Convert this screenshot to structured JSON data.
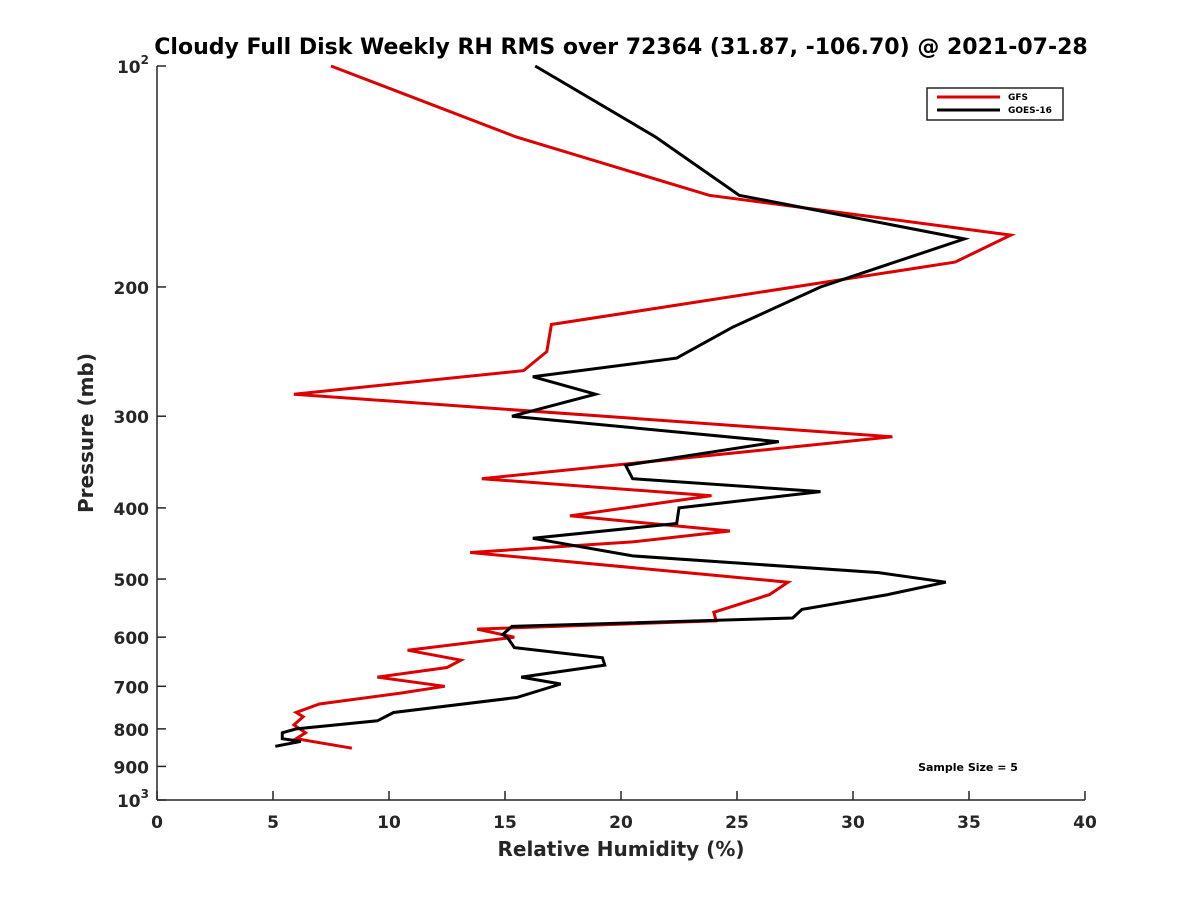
{
  "chart_data": {
    "type": "line",
    "title": "Cloudy Full Disk Weekly RH RMS over 72364 (31.87, -106.70) @ 2021-07-28",
    "xlabel": "Relative Humidity (%)",
    "ylabel": "Pressure (mb)",
    "xlim": [
      0,
      40
    ],
    "ylim": [
      100,
      1000
    ],
    "yscale": "log",
    "y_reversed": true,
    "grid": false,
    "x_ticks": [
      "0",
      "5",
      "10",
      "15",
      "20",
      "25",
      "30",
      "35",
      "40"
    ],
    "x_tick_values": [
      0,
      5,
      10,
      15,
      20,
      25,
      30,
      35,
      40
    ],
    "y_ticks": [
      {
        "value": 100,
        "base": "10",
        "exp": "2"
      },
      {
        "value": 200,
        "base": "200",
        "exp": ""
      },
      {
        "value": 300,
        "base": "300",
        "exp": ""
      },
      {
        "value": 400,
        "base": "400",
        "exp": ""
      },
      {
        "value": 500,
        "base": "500",
        "exp": ""
      },
      {
        "value": 600,
        "base": "600",
        "exp": ""
      },
      {
        "value": 700,
        "base": "700",
        "exp": ""
      },
      {
        "value": 800,
        "base": "800",
        "exp": ""
      },
      {
        "value": 900,
        "base": "900",
        "exp": ""
      },
      {
        "value": 1000,
        "base": "10",
        "exp": "3"
      }
    ],
    "legend_position": "top-right",
    "annotation": "Sample Size = 5",
    "series": [
      {
        "name": "GFS",
        "color": "#dd0000",
        "points": [
          [
            7.5,
            100
          ],
          [
            15.5,
            125
          ],
          [
            23.8,
            150
          ],
          [
            36.8,
            170
          ],
          [
            34.4,
            185
          ],
          [
            17,
            225
          ],
          [
            16.8,
            245
          ],
          [
            15.8,
            260
          ],
          [
            5.9,
            280
          ],
          [
            31.7,
            320
          ],
          [
            14,
            365
          ],
          [
            23.9,
            385
          ],
          [
            17.8,
            410
          ],
          [
            24.7,
            430
          ],
          [
            20.5,
            445
          ],
          [
            13.5,
            460
          ],
          [
            22.8,
            490
          ],
          [
            27.2,
            505
          ],
          [
            26.4,
            525
          ],
          [
            24,
            555
          ],
          [
            24.1,
            570
          ],
          [
            13.8,
            585
          ],
          [
            15.4,
            600
          ],
          [
            10.8,
            625
          ],
          [
            13.1,
            645
          ],
          [
            12.5,
            660
          ],
          [
            9.5,
            680
          ],
          [
            12.4,
            700
          ],
          [
            10.5,
            715
          ],
          [
            7,
            740
          ],
          [
            6,
            760
          ],
          [
            6.3,
            770
          ],
          [
            5.9,
            790
          ],
          [
            6.4,
            810
          ],
          [
            6,
            825
          ],
          [
            8.4,
            850
          ]
        ]
      },
      {
        "name": "GOES-16",
        "color": "#000000",
        "points": [
          [
            16.3,
            100
          ],
          [
            21.5,
            125
          ],
          [
            25.1,
            150
          ],
          [
            34.8,
            172
          ],
          [
            28.6,
            200
          ],
          [
            24.8,
            227
          ],
          [
            22.4,
            250
          ],
          [
            16.2,
            265
          ],
          [
            18.9,
            280
          ],
          [
            15.3,
            300
          ],
          [
            26.8,
            325
          ],
          [
            20.2,
            350
          ],
          [
            20.5,
            365
          ],
          [
            28.6,
            380
          ],
          [
            22.5,
            400
          ],
          [
            22.4,
            420
          ],
          [
            16.2,
            440
          ],
          [
            20.5,
            465
          ],
          [
            31.1,
            490
          ],
          [
            34,
            505
          ],
          [
            31.5,
            525
          ],
          [
            27.8,
            550
          ],
          [
            27.4,
            565
          ],
          [
            15.3,
            580
          ],
          [
            14.9,
            595
          ],
          [
            15.1,
            600
          ],
          [
            15.4,
            620
          ],
          [
            19.2,
            640
          ],
          [
            19.3,
            655
          ],
          [
            15.7,
            680
          ],
          [
            17.4,
            695
          ],
          [
            15.5,
            725
          ],
          [
            10.2,
            760
          ],
          [
            9.5,
            780
          ],
          [
            6,
            800
          ],
          [
            5.4,
            810
          ],
          [
            5.4,
            825
          ],
          [
            6.2,
            832
          ],
          [
            5.1,
            845
          ]
        ]
      }
    ]
  }
}
